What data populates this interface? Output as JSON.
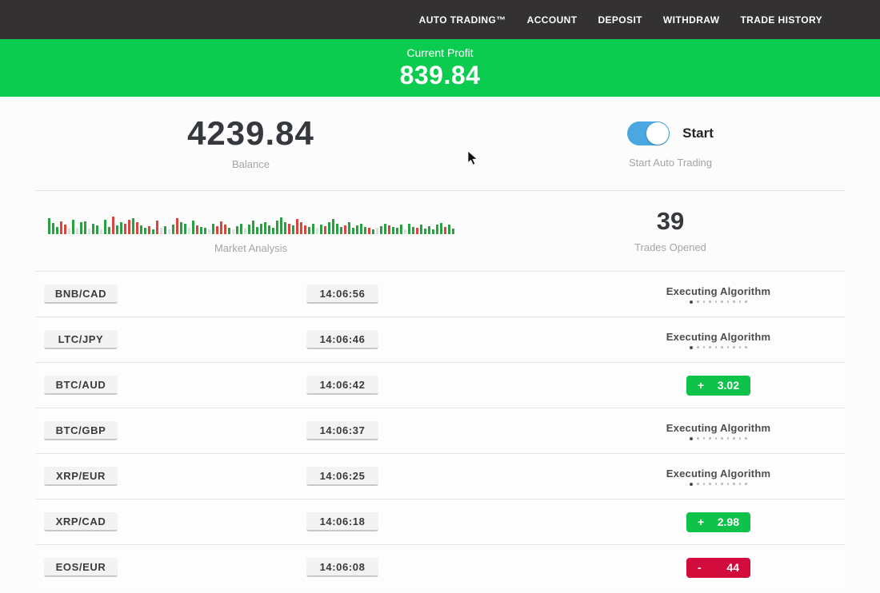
{
  "nav": {
    "items": [
      {
        "label": "AUTO TRADING™"
      },
      {
        "label": "ACCOUNT"
      },
      {
        "label": "DEPOSIT"
      },
      {
        "label": "WITHDRAW"
      },
      {
        "label": "TRADE HISTORY"
      }
    ]
  },
  "profit_banner": {
    "label": "Current Profit",
    "value": "839.84"
  },
  "account": {
    "balance": "4239.84",
    "balance_label": "Balance",
    "toggle_label": "Start",
    "toggle_caption": "Start Auto Trading",
    "toggle_on": true
  },
  "market": {
    "label": "Market Analysis",
    "trades_opened": "39",
    "trades_opened_label": "Trades Opened",
    "bars": [
      [
        20,
        "g"
      ],
      [
        14,
        "g"
      ],
      [
        9,
        "g"
      ],
      [
        16,
        "r"
      ],
      [
        12,
        "r"
      ],
      [
        7,
        "l"
      ],
      [
        18,
        "g"
      ],
      [
        8,
        "l"
      ],
      [
        15,
        "g"
      ],
      [
        16,
        "g"
      ],
      [
        7,
        "l"
      ],
      [
        13,
        "g"
      ],
      [
        11,
        "g"
      ],
      [
        6,
        "l"
      ],
      [
        18,
        "g"
      ],
      [
        9,
        "g"
      ],
      [
        22,
        "r"
      ],
      [
        11,
        "g"
      ],
      [
        15,
        "g"
      ],
      [
        13,
        "r"
      ],
      [
        18,
        "r"
      ],
      [
        20,
        "g"
      ],
      [
        15,
        "r"
      ],
      [
        11,
        "g"
      ],
      [
        8,
        "g"
      ],
      [
        10,
        "r"
      ],
      [
        6,
        "g"
      ],
      [
        17,
        "r"
      ],
      [
        8,
        "l"
      ],
      [
        10,
        "g"
      ],
      [
        6,
        "l"
      ],
      [
        12,
        "g"
      ],
      [
        20,
        "r"
      ],
      [
        15,
        "g"
      ],
      [
        13,
        "g"
      ],
      [
        8,
        "l"
      ],
      [
        17,
        "g"
      ],
      [
        11,
        "r"
      ],
      [
        9,
        "g"
      ],
      [
        8,
        "g"
      ],
      [
        6,
        "l"
      ],
      [
        13,
        "g"
      ],
      [
        10,
        "r"
      ],
      [
        16,
        "r"
      ],
      [
        12,
        "r"
      ],
      [
        8,
        "g"
      ],
      [
        6,
        "l"
      ],
      [
        10,
        "g"
      ],
      [
        13,
        "g"
      ],
      [
        8,
        "l"
      ],
      [
        12,
        "g"
      ],
      [
        17,
        "g"
      ],
      [
        9,
        "g"
      ],
      [
        13,
        "g"
      ],
      [
        15,
        "g"
      ],
      [
        11,
        "g"
      ],
      [
        8,
        "g"
      ],
      [
        17,
        "g"
      ],
      [
        21,
        "g"
      ],
      [
        15,
        "g"
      ],
      [
        13,
        "r"
      ],
      [
        11,
        "g"
      ],
      [
        19,
        "r"
      ],
      [
        15,
        "r"
      ],
      [
        11,
        "r"
      ],
      [
        9,
        "g"
      ],
      [
        13,
        "g"
      ],
      [
        8,
        "l"
      ],
      [
        12,
        "g"
      ],
      [
        10,
        "r"
      ],
      [
        15,
        "g"
      ],
      [
        19,
        "g"
      ],
      [
        13,
        "g"
      ],
      [
        9,
        "g"
      ],
      [
        11,
        "r"
      ],
      [
        15,
        "g"
      ],
      [
        8,
        "g"
      ],
      [
        11,
        "g"
      ],
      [
        13,
        "g"
      ],
      [
        9,
        "g"
      ],
      [
        8,
        "r"
      ],
      [
        6,
        "g"
      ],
      [
        8,
        "l"
      ],
      [
        10,
        "g"
      ],
      [
        13,
        "g"
      ],
      [
        11,
        "r"
      ],
      [
        9,
        "g"
      ],
      [
        8,
        "g"
      ],
      [
        12,
        "g"
      ],
      [
        6,
        "l"
      ],
      [
        13,
        "g"
      ],
      [
        9,
        "g"
      ],
      [
        8,
        "r"
      ],
      [
        12,
        "g"
      ],
      [
        7,
        "g"
      ],
      [
        10,
        "g"
      ],
      [
        6,
        "g"
      ],
      [
        12,
        "g"
      ],
      [
        14,
        "g"
      ],
      [
        9,
        "r"
      ],
      [
        12,
        "g"
      ],
      [
        7,
        "g"
      ]
    ]
  },
  "labels": {
    "executing": "Executing Algorithm"
  },
  "status_dots": 10,
  "trades": [
    {
      "pair": "BNB/CAD",
      "time": "14:06:56",
      "result": {
        "type": "executing"
      }
    },
    {
      "pair": "LTC/JPY",
      "time": "14:06:46",
      "result": {
        "type": "executing"
      }
    },
    {
      "pair": "BTC/AUD",
      "time": "14:06:42",
      "result": {
        "type": "profit",
        "sign": "+",
        "value": "3.02"
      }
    },
    {
      "pair": "BTC/GBP",
      "time": "14:06:37",
      "result": {
        "type": "executing"
      }
    },
    {
      "pair": "XRP/EUR",
      "time": "14:06:25",
      "result": {
        "type": "executing"
      }
    },
    {
      "pair": "XRP/CAD",
      "time": "14:06:18",
      "result": {
        "type": "profit",
        "sign": "+",
        "value": "2.98"
      }
    },
    {
      "pair": "EOS/EUR",
      "time": "14:06:08",
      "result": {
        "type": "loss",
        "sign": "-",
        "value": "44"
      }
    }
  ],
  "colors": {
    "nav_bg": "#333132",
    "banner_green": "#0ccc50",
    "toggle_blue": "#4aa8e0",
    "profit_green": "#0ec24a",
    "loss_red": "#d20d3e",
    "bar_green": "#2aa043",
    "bar_red": "#d8463e",
    "bar_gray": "#dddddd"
  }
}
